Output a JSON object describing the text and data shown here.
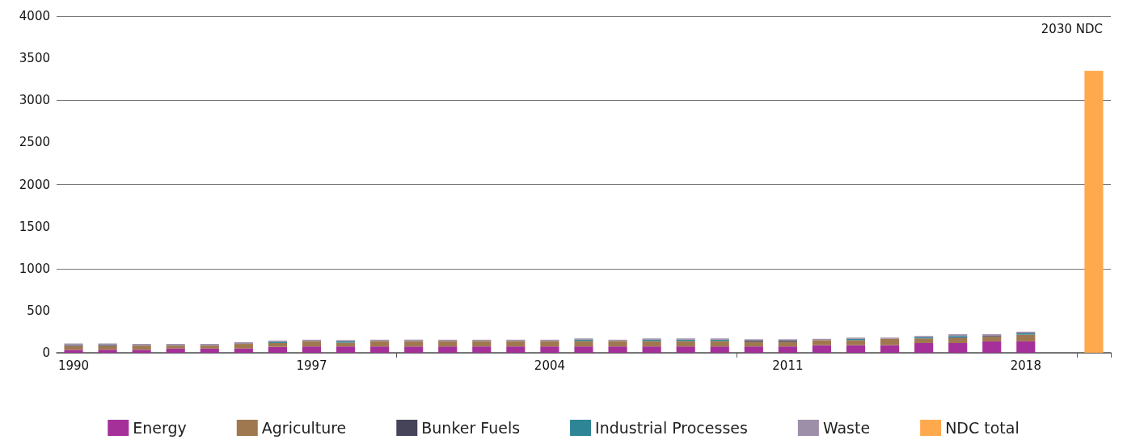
{
  "chart_data": {
    "type": "bar",
    "stacked": true,
    "categories": [
      "1990",
      null,
      null,
      null,
      null,
      null,
      null,
      "1997",
      null,
      null,
      null,
      null,
      null,
      null,
      "2004",
      null,
      null,
      null,
      null,
      null,
      null,
      "2011",
      null,
      null,
      null,
      null,
      null,
      null,
      "2018",
      null,
      null
    ],
    "series": [
      {
        "name": "Energy",
        "color": "#a5309a",
        "values": [
          35,
          35,
          35,
          50,
          50,
          50,
          70,
          75,
          75,
          75,
          75,
          75,
          75,
          75,
          75,
          75,
          75,
          75,
          75,
          75,
          75,
          75,
          90,
          90,
          90,
          115,
          115,
          135,
          135,
          null,
          null
        ]
      },
      {
        "name": "Agriculture",
        "color": "#a07850",
        "values": [
          45,
          45,
          50,
          35,
          35,
          55,
          45,
          65,
          45,
          65,
          65,
          65,
          65,
          65,
          65,
          65,
          65,
          65,
          65,
          65,
          55,
          55,
          60,
          60,
          75,
          55,
          60,
          55,
          80,
          null,
          null
        ]
      },
      {
        "name": "Bunker Fuels",
        "color": "#454459",
        "values": [
          10,
          10,
          0,
          0,
          0,
          0,
          0,
          0,
          0,
          0,
          0,
          0,
          0,
          0,
          0,
          0,
          0,
          0,
          0,
          0,
          15,
          15,
          0,
          0,
          0,
          0,
          10,
          10,
          0,
          null,
          null
        ]
      },
      {
        "name": "Industrial Processes",
        "color": "#2e8596",
        "values": [
          0,
          0,
          0,
          0,
          0,
          0,
          15,
          0,
          15,
          0,
          0,
          0,
          0,
          0,
          0,
          15,
          0,
          15,
          15,
          15,
          0,
          0,
          0,
          15,
          0,
          15,
          15,
          0,
          15,
          null,
          null
        ]
      },
      {
        "name": "Waste",
        "color": "#9e8fa8",
        "values": [
          20,
          20,
          20,
          20,
          20,
          20,
          15,
          15,
          15,
          15,
          15,
          15,
          15,
          15,
          15,
          15,
          15,
          15,
          15,
          15,
          15,
          15,
          15,
          15,
          15,
          15,
          20,
          20,
          20,
          null,
          null
        ]
      },
      {
        "name": "NDC total",
        "color": "#ffa94f",
        "values": [
          null,
          null,
          null,
          null,
          null,
          null,
          null,
          null,
          null,
          null,
          null,
          null,
          null,
          null,
          null,
          null,
          null,
          null,
          null,
          null,
          null,
          null,
          null,
          null,
          null,
          null,
          null,
          null,
          null,
          null,
          3350
        ]
      }
    ],
    "ylim": [
      0,
      4000
    ],
    "yticks": [
      0,
      500,
      1000,
      1500,
      2000,
      2500,
      3000,
      3500,
      4000
    ],
    "grid": "y",
    "legend": "bottom",
    "annotations": [
      "2030 NDC"
    ]
  }
}
